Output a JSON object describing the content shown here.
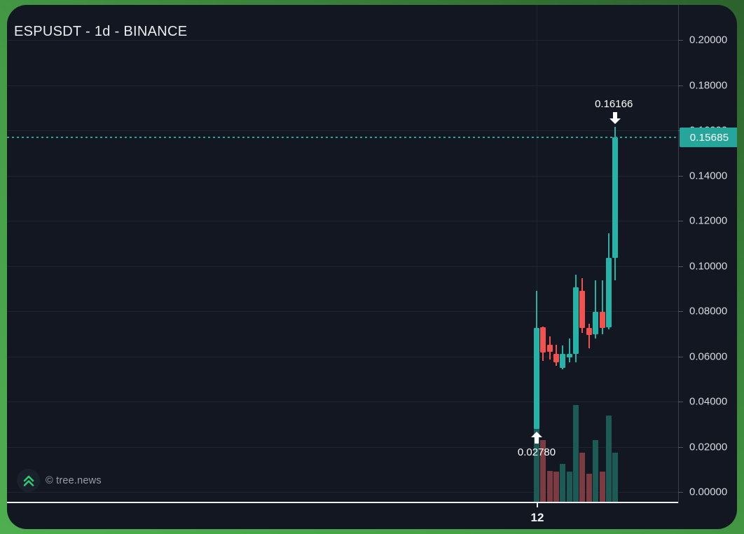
{
  "header": {
    "title": "ESPUSDT - 1d - BINANCE"
  },
  "watermark": {
    "text": "© tree.news",
    "icon": "angles-up-icon"
  },
  "colors": {
    "background_frame": "#459c45",
    "card_bg": "#131722",
    "up": "#26b3a7",
    "down": "#f4504e",
    "vol_up": "#1c5a55",
    "vol_down": "#7c3a41",
    "price_line": "#26a69a",
    "price_label_bg": "#26a69a",
    "grid": "#1e2430",
    "axis_text": "#d7dade"
  },
  "chart_data": {
    "type": "candlestick",
    "title": "ESPUSDT - 1d - BINANCE",
    "exchange": "BINANCE",
    "interval": "1d",
    "grid": "on",
    "y_axis": {
      "side": "right",
      "min": 0.0,
      "max": 0.215,
      "tick_step": 0.02,
      "tick_labels": [
        "0.20000",
        "0.18000",
        "0.16000",
        "0.14000",
        "0.12000",
        "0.10000",
        "0.08000",
        "0.06000",
        "0.04000",
        "0.02000",
        "0.00000"
      ]
    },
    "x_axis": {
      "tick_label": "12",
      "tick_candle_index": 0
    },
    "current_price": {
      "label": "0.15685",
      "value": 0.15685
    },
    "annotations": [
      {
        "type": "high-marker",
        "label": "0.16166",
        "value": 0.16166,
        "candle_index": 12,
        "arrow": "down"
      },
      {
        "type": "low-marker",
        "label": "0.02780",
        "value": 0.0278,
        "candle_index": 0,
        "arrow": "up"
      }
    ],
    "candles": [
      {
        "o": 0.0278,
        "h": 0.089,
        "l": 0.0278,
        "c": 0.0726,
        "dir": "up",
        "volume_rel": 0.79
      },
      {
        "o": 0.0729,
        "h": 0.0733,
        "l": 0.058,
        "c": 0.0617,
        "dir": "down",
        "volume_rel": 0.64
      },
      {
        "o": 0.0651,
        "h": 0.0688,
        "l": 0.0586,
        "c": 0.062,
        "dir": "down",
        "volume_rel": 0.32
      },
      {
        "o": 0.0611,
        "h": 0.0651,
        "l": 0.0558,
        "c": 0.0574,
        "dir": "down",
        "volume_rel": 0.31
      },
      {
        "o": 0.0549,
        "h": 0.0648,
        "l": 0.0543,
        "c": 0.0611,
        "dir": "up",
        "volume_rel": 0.39
      },
      {
        "o": 0.0595,
        "h": 0.0679,
        "l": 0.0574,
        "c": 0.0611,
        "dir": "up",
        "volume_rel": 0.31
      },
      {
        "o": 0.0611,
        "h": 0.0961,
        "l": 0.0574,
        "c": 0.0905,
        "dir": "up",
        "volume_rel": 1.0
      },
      {
        "o": 0.089,
        "h": 0.0946,
        "l": 0.0704,
        "c": 0.0726,
        "dir": "down",
        "volume_rel": 0.51
      },
      {
        "o": 0.0726,
        "h": 0.0744,
        "l": 0.0636,
        "c": 0.0694,
        "dir": "down",
        "volume_rel": 0.29
      },
      {
        "o": 0.0698,
        "h": 0.0937,
        "l": 0.0679,
        "c": 0.0797,
        "dir": "up",
        "volume_rel": 0.64
      },
      {
        "o": 0.0797,
        "h": 0.0937,
        "l": 0.0698,
        "c": 0.0726,
        "dir": "down",
        "wick_tint": "up",
        "volume_rel": 0.31
      },
      {
        "o": 0.0729,
        "h": 0.1144,
        "l": 0.0719,
        "c": 0.1036,
        "dir": "up",
        "volume_rel": 0.89
      },
      {
        "o": 0.1036,
        "h": 0.16166,
        "l": 0.0936,
        "c": 0.15685,
        "dir": "up",
        "volume_rel": 0.51
      }
    ]
  }
}
